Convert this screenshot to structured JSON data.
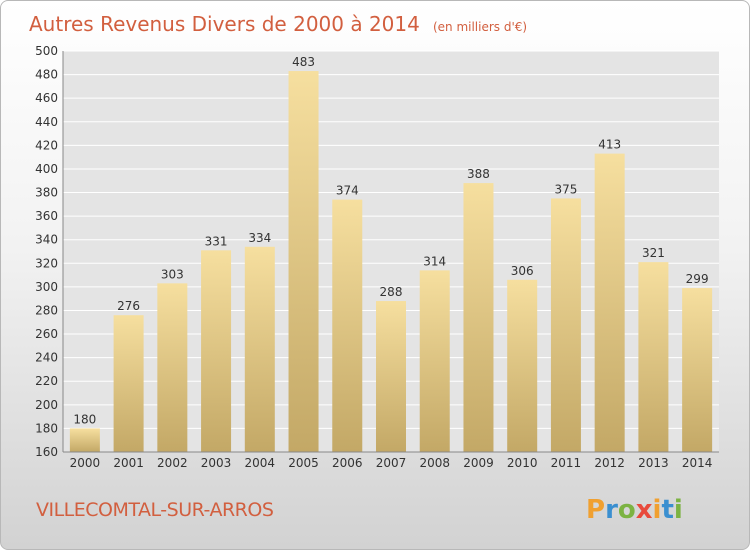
{
  "chart_data": {
    "type": "bar",
    "title": "Autres Revenus Divers de 2000 à 2014",
    "subtitle": "(en milliers d'€)",
    "categories": [
      "2000",
      "2001",
      "2002",
      "2003",
      "2004",
      "2005",
      "2006",
      "2007",
      "2008",
      "2009",
      "2010",
      "2011",
      "2012",
      "2013",
      "2014"
    ],
    "values": [
      180,
      276,
      303,
      331,
      334,
      483,
      374,
      288,
      314,
      388,
      306,
      375,
      413,
      321,
      299
    ],
    "ylim": [
      160,
      500
    ],
    "yticks": [
      160,
      180,
      200,
      220,
      240,
      260,
      280,
      300,
      320,
      340,
      360,
      380,
      400,
      420,
      440,
      460,
      480,
      500
    ],
    "grid": true,
    "legend": "none",
    "colors": {
      "bar_light": "#f6df9f",
      "bar_dark": "#c3a866",
      "grid": "#ffffff",
      "title": "#d25f3f"
    }
  },
  "footer": {
    "town": "VILLECOMTAL-SUR-ARROS",
    "logo_letters": [
      "P",
      "r",
      "o",
      "x",
      "i",
      "t",
      "i"
    ],
    "logo_colors": [
      "#f0a030",
      "#3a8fd0",
      "#7cb342",
      "#e84a3c",
      "#f0a030",
      "#3a8fd0",
      "#7cb342"
    ]
  }
}
